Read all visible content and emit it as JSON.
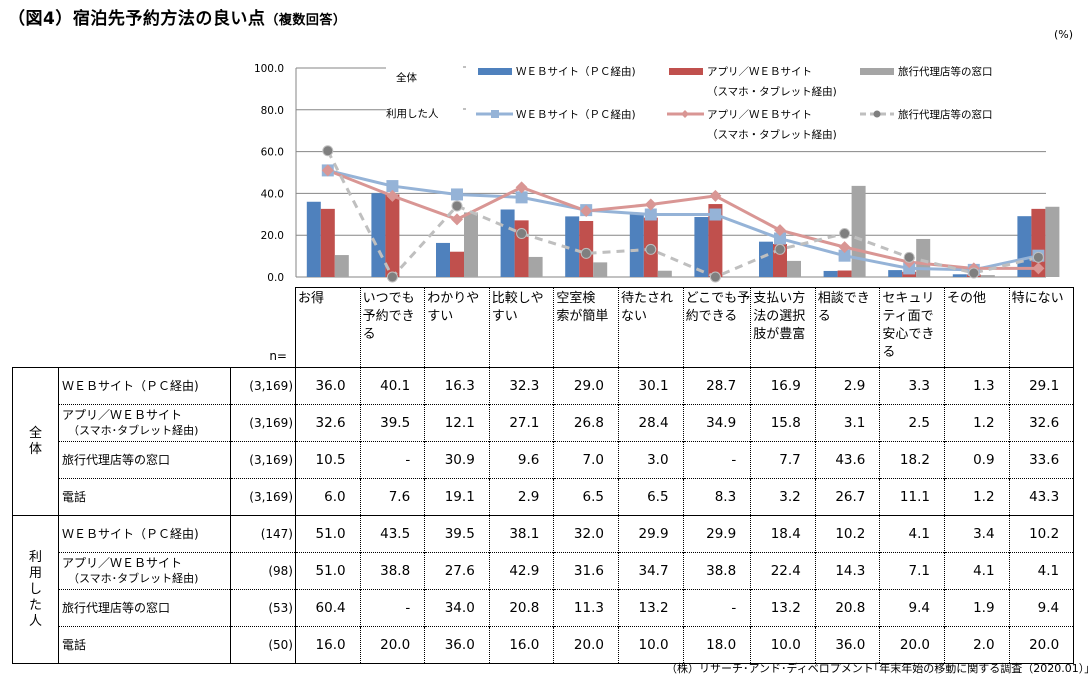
{
  "title": {
    "main": "（図4）宿泊先予約方法の良い点",
    "sub": "（複数回答）"
  },
  "unit_label": "(%)",
  "legend": {
    "group_all": "全体",
    "group_users": "利用した人",
    "web_pc": "ＷＥＢサイト（ＰＣ経由)",
    "app_line1": "アプリ／ＷＥＢサイト",
    "app_line2": "（スマホ・タブレット経由)",
    "agency": "旅行代理店等の窓口"
  },
  "chart_data": {
    "type": "bar",
    "title": "（図4）宿泊先予約方法の良い点（複数回答）",
    "xlabel": "",
    "ylabel": "(%)",
    "ylim": [
      0,
      100
    ],
    "yticks": [
      "0.0",
      "20.0",
      "40.0",
      "60.0",
      "80.0",
      "100.0"
    ],
    "grid": true,
    "legend_position": "top",
    "categories": [
      "お得",
      "いつでも予約できる",
      "わかりやすい",
      "比較しやすい",
      "空室検索が簡単",
      "待たされない",
      "どこでも予約できる",
      "支払い方法の選択肢が豊富",
      "相談できる",
      "セキュリティ面で安心できる",
      "その他",
      "特にない"
    ],
    "bar_series": [
      {
        "name": "全体 ＷＥＢサイト（ＰＣ経由)",
        "color": "#4F81BD",
        "values": [
          36.0,
          40.1,
          16.3,
          32.3,
          29.0,
          30.1,
          28.7,
          16.9,
          2.9,
          3.3,
          1.3,
          29.1
        ]
      },
      {
        "name": "全体 アプリ／ＷＥＢサイト（スマホ・タブレット経由)",
        "color": "#C0504D",
        "values": [
          32.6,
          39.5,
          12.1,
          27.1,
          26.8,
          28.4,
          34.9,
          15.8,
          3.1,
          2.5,
          1.2,
          32.6
        ]
      },
      {
        "name": "全体 旅行代理店等の窓口",
        "color": "#A5A5A5",
        "values": [
          10.5,
          0,
          30.9,
          9.6,
          7.0,
          3.0,
          0,
          7.7,
          43.6,
          18.2,
          0.9,
          33.6
        ]
      }
    ],
    "line_series": [
      {
        "name": "利用した人 ＷＥＢサイト（ＰＣ経由)",
        "color": "#95B3D7",
        "marker": "square",
        "values": [
          51.0,
          43.5,
          39.5,
          38.1,
          32.0,
          29.9,
          29.9,
          18.4,
          10.2,
          4.1,
          3.4,
          10.2
        ]
      },
      {
        "name": "利用した人 アプリ／ＷＥＢサイト（スマホ・タブレット経由)",
        "color": "#D99694",
        "marker": "diamond",
        "values": [
          51.0,
          38.8,
          27.6,
          42.9,
          31.6,
          34.7,
          38.8,
          22.4,
          14.3,
          7.1,
          4.1,
          4.1
        ]
      },
      {
        "name": "利用した人 旅行代理店等の窓口",
        "color": "#BFBFBF",
        "marker": "circle",
        "dashed": true,
        "values": [
          60.4,
          0,
          34.0,
          20.8,
          11.3,
          13.2,
          0,
          13.2,
          20.8,
          9.4,
          1.9,
          9.4
        ]
      }
    ]
  },
  "table": {
    "n_header": "n=",
    "column_headers": [
      [
        "お得"
      ],
      [
        "いつでも",
        "予約でき",
        "る"
      ],
      [
        "わかりや",
        "すい"
      ],
      [
        "比較しや",
        "すい"
      ],
      [
        "空室検",
        "索が簡単"
      ],
      [
        "待たされ",
        "ない"
      ],
      [
        "どこでも予",
        "約できる"
      ],
      [
        "支払い方",
        "法の選択",
        "肢が豊富"
      ],
      [
        "相談でき",
        "る"
      ],
      [
        "セキュリ",
        "ティ面で",
        "安心でき",
        "る"
      ],
      [
        "その他"
      ],
      [
        "特にない"
      ]
    ],
    "groups": [
      {
        "label": "全体",
        "rows": [
          {
            "label": "ＷＥＢサイト（ＰＣ経由)",
            "sub": "",
            "n": "(3,169)",
            "values": [
              "36.0",
              "40.1",
              "16.3",
              "32.3",
              "29.0",
              "30.1",
              "28.7",
              "16.9",
              "2.9",
              "3.3",
              "1.3",
              "29.1"
            ]
          },
          {
            "label": "アプリ／ＷＥＢサイト",
            "sub": "（スマホ･タブレット経由)",
            "n": "(3,169)",
            "values": [
              "32.6",
              "39.5",
              "12.1",
              "27.1",
              "26.8",
              "28.4",
              "34.9",
              "15.8",
              "3.1",
              "2.5",
              "1.2",
              "32.6"
            ]
          },
          {
            "label": "旅行代理店等の窓口",
            "sub": "",
            "n": "(3,169)",
            "values": [
              "10.5",
              "-",
              "30.9",
              "9.6",
              "7.0",
              "3.0",
              "-",
              "7.7",
              "43.6",
              "18.2",
              "0.9",
              "33.6"
            ]
          },
          {
            "label": "電話",
            "sub": "",
            "n": "(3,169)",
            "values": [
              "6.0",
              "7.6",
              "19.1",
              "2.9",
              "6.5",
              "6.5",
              "8.3",
              "3.2",
              "26.7",
              "11.1",
              "1.2",
              "43.3"
            ]
          }
        ]
      },
      {
        "label": "利用した人",
        "rows": [
          {
            "label": "ＷＥＢサイト（ＰＣ経由)",
            "sub": "",
            "n": "(147)",
            "values": [
              "51.0",
              "43.5",
              "39.5",
              "38.1",
              "32.0",
              "29.9",
              "29.9",
              "18.4",
              "10.2",
              "4.1",
              "3.4",
              "10.2"
            ]
          },
          {
            "label": "アプリ／ＷＥＢサイト",
            "sub": "（スマホ･タブレット経由)",
            "n": "(98)",
            "values": [
              "51.0",
              "38.8",
              "27.6",
              "42.9",
              "31.6",
              "34.7",
              "38.8",
              "22.4",
              "14.3",
              "7.1",
              "4.1",
              "4.1"
            ]
          },
          {
            "label": "旅行代理店等の窓口",
            "sub": "",
            "n": "(53)",
            "values": [
              "60.4",
              "-",
              "34.0",
              "20.8",
              "11.3",
              "13.2",
              "-",
              "13.2",
              "20.8",
              "9.4",
              "1.9",
              "9.4"
            ]
          },
          {
            "label": "電話",
            "sub": "",
            "n": "(50)",
            "values": [
              "16.0",
              "20.0",
              "36.0",
              "16.0",
              "20.0",
              "10.0",
              "18.0",
              "10.0",
              "36.0",
              "20.0",
              "2.0",
              "20.0"
            ]
          }
        ]
      }
    ]
  },
  "source": "（株）リサーチ･アンド･ディベロプメント｢年末年始の移動に関する調査（2020.01）｣より"
}
